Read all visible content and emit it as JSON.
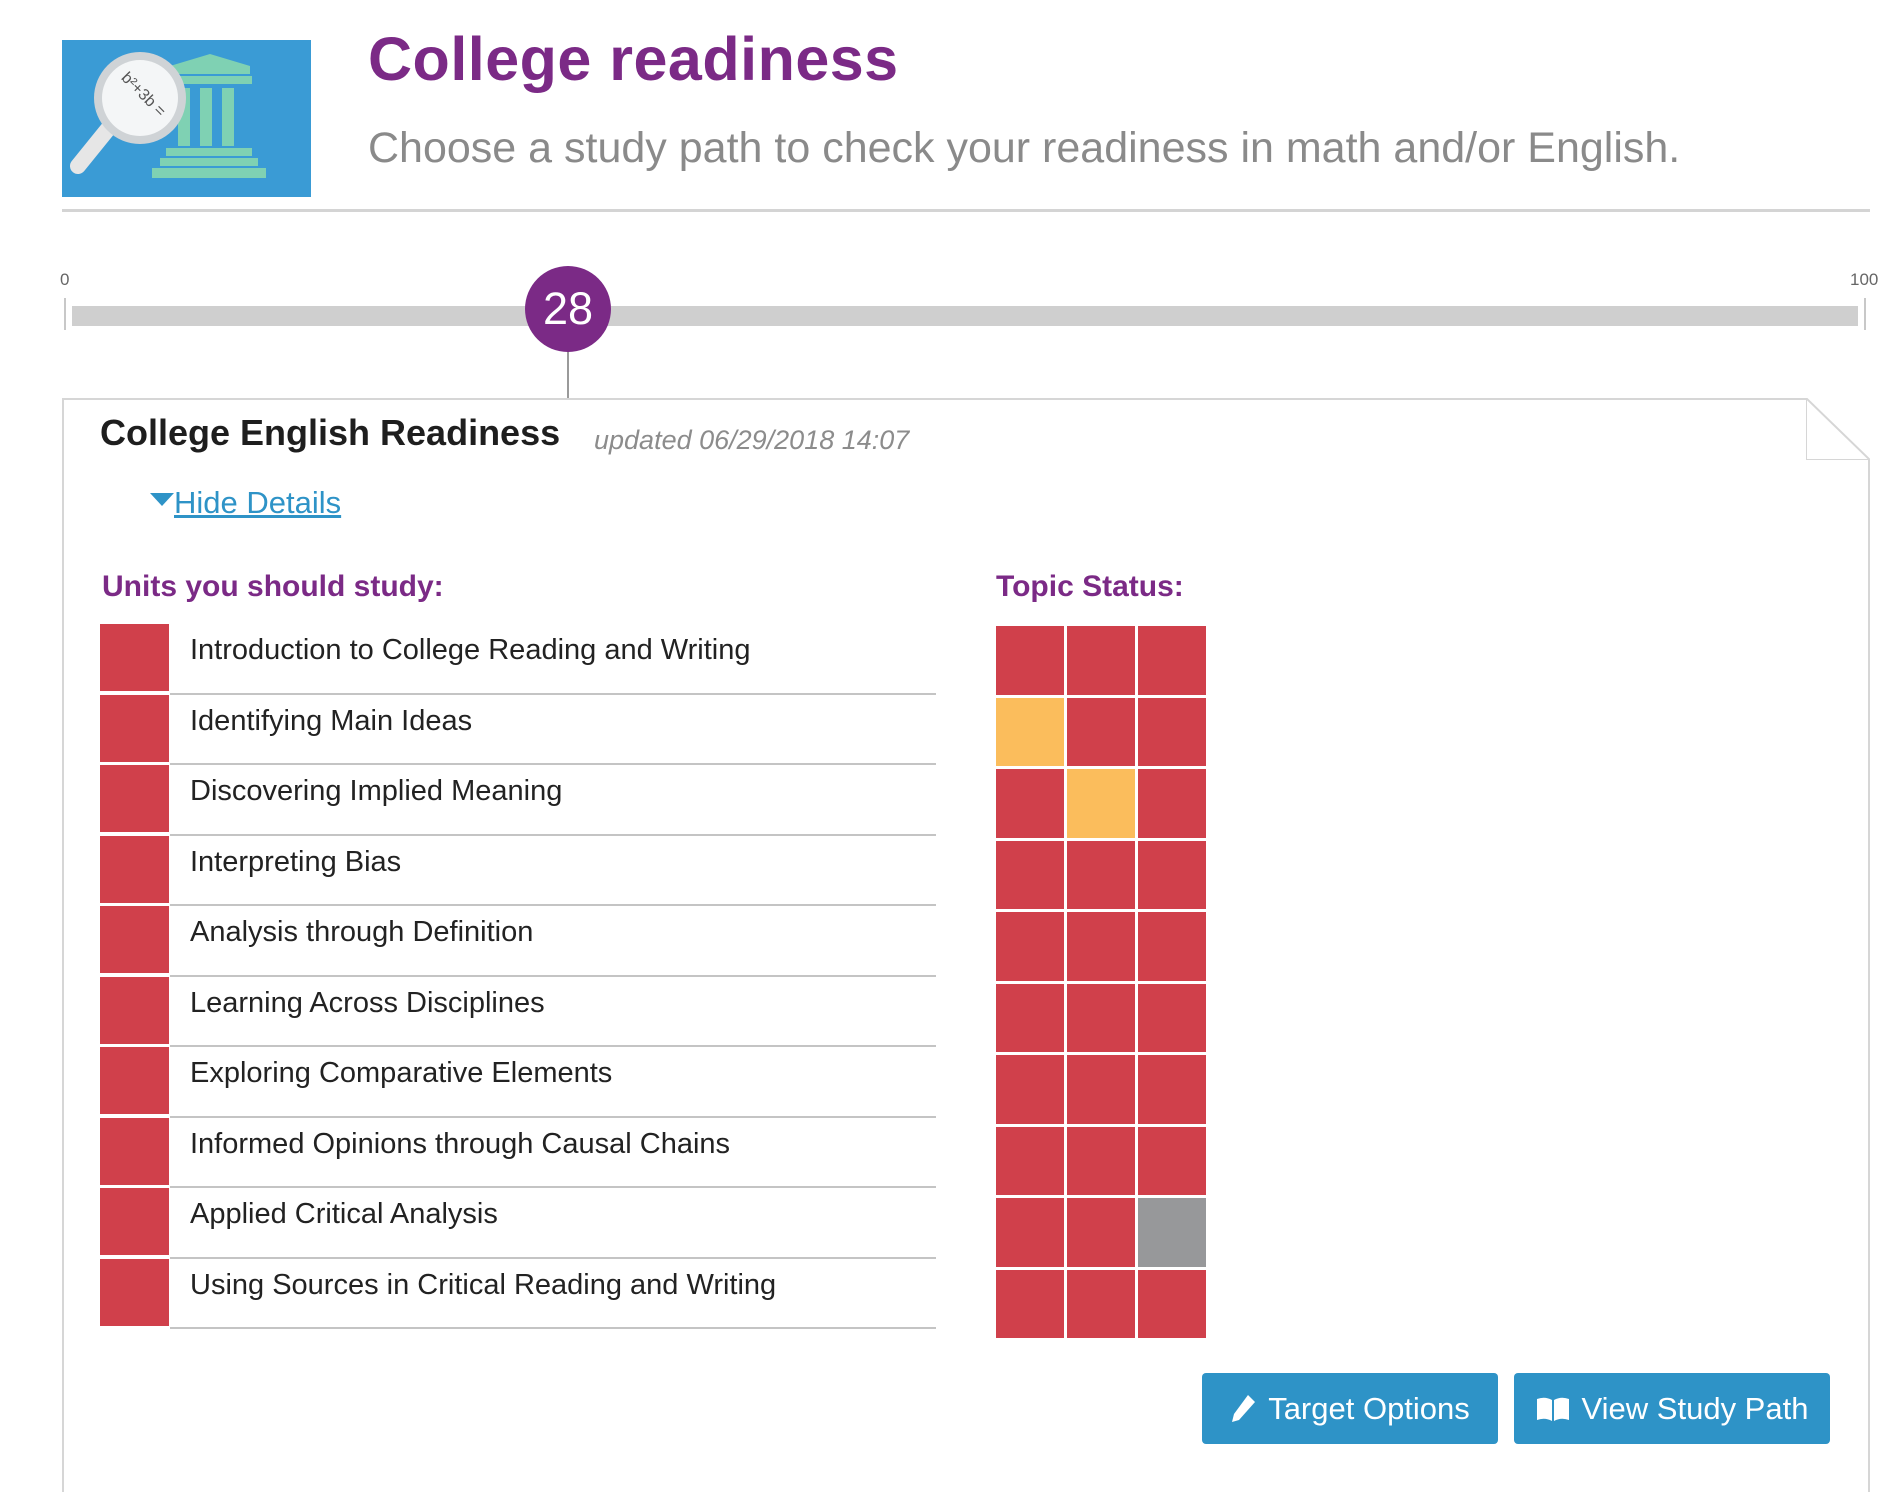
{
  "header": {
    "title": "College readiness",
    "subtitle": "Choose a study path to check your readiness in math and/or English.",
    "logo_icon": "college-magnifier-icon",
    "logo_formula": "b²+3b ="
  },
  "progress": {
    "min_label": "0",
    "max_label": "100",
    "value": 28,
    "value_label": "28"
  },
  "card": {
    "title": "College English Readiness",
    "updated": "updated 06/29/2018 14:07",
    "toggle_label": "Hide Details",
    "units_heading": "Units you should study:",
    "topics_heading": "Topic Status:",
    "units": [
      {
        "name": "Introduction to College Reading and Writing",
        "status": "red",
        "topics": [
          "red",
          "red",
          "red"
        ]
      },
      {
        "name": "Identifying Main Ideas",
        "status": "red",
        "topics": [
          "yellow",
          "red",
          "red"
        ]
      },
      {
        "name": "Discovering Implied Meaning",
        "status": "red",
        "topics": [
          "red",
          "yellow",
          "red"
        ]
      },
      {
        "name": "Interpreting Bias",
        "status": "red",
        "topics": [
          "red",
          "red",
          "red"
        ]
      },
      {
        "name": "Analysis through Definition",
        "status": "red",
        "topics": [
          "red",
          "red",
          "red"
        ]
      },
      {
        "name": "Learning Across Disciplines",
        "status": "red",
        "topics": [
          "red",
          "red",
          "red"
        ]
      },
      {
        "name": "Exploring Comparative Elements",
        "status": "red",
        "topics": [
          "red",
          "red",
          "red"
        ]
      },
      {
        "name": "Informed Opinions through Causal Chains",
        "status": "red",
        "topics": [
          "red",
          "red",
          "red"
        ]
      },
      {
        "name": "Applied Critical Analysis",
        "status": "red",
        "topics": [
          "red",
          "red",
          "gray"
        ]
      },
      {
        "name": "Using Sources in Critical Reading and Writing",
        "status": "red",
        "topics": [
          "red",
          "red",
          "red"
        ]
      }
    ],
    "buttons": {
      "target_options": {
        "label": "Target Options",
        "icon": "pencil-icon"
      },
      "view_study_path": {
        "label": "View Study Path",
        "icon": "book-icon"
      }
    }
  },
  "colors": {
    "brand_purple": "#7b2a86",
    "accent_blue": "#2e93c7",
    "status_red": "#d0404b",
    "status_yellow": "#fbbd5c",
    "status_gray": "#97989a",
    "logo_blue": "#3a9bd5"
  }
}
